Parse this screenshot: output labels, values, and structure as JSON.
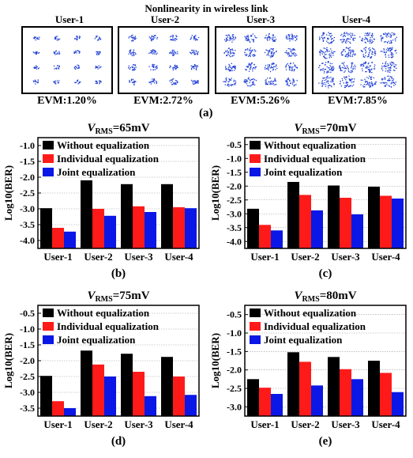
{
  "figure_a": {
    "title": "Nonlinearity in wireless link",
    "label": "(a)",
    "users": [
      {
        "name": "User-1",
        "evm": "EVM:1.20%",
        "spread": 0.012
      },
      {
        "name": "User-2",
        "evm": "EVM:2.72%",
        "spread": 0.027
      },
      {
        "name": "User-3",
        "evm": "EVM:5.26%",
        "spread": 0.053
      },
      {
        "name": "User-4",
        "evm": "EVM:7.85%",
        "spread": 0.079
      }
    ]
  },
  "colors": {
    "without": "#000000",
    "individual": "#ff1a1a",
    "joint": "#0a17e6",
    "dots": "#1f3fd6"
  },
  "legend": [
    "Without equalization",
    "Individual equalization",
    "Joint equalization"
  ],
  "chart_data": [
    {
      "type": "bar",
      "panel_label": "(b)",
      "title_prefix": "V",
      "title_sub": "RMS",
      "title_value": "=65mV",
      "ylabel": "Log10(BER)",
      "categories": [
        "User-1",
        "User-2",
        "User-3",
        "User-4"
      ],
      "ylim": [
        -4.25,
        -0.75
      ],
      "yticks": [
        "-1.0",
        "-1.5",
        "-2.0",
        "-2.5",
        "-3.0",
        "-3.5",
        "-4.0"
      ],
      "series": [
        {
          "name": "Without equalization",
          "values": [
            -2.98,
            -2.1,
            -2.22,
            -2.22
          ]
        },
        {
          "name": "Individual equalization",
          "values": [
            -3.6,
            -3.0,
            -2.92,
            -2.95
          ]
        },
        {
          "name": "Joint equalization",
          "values": [
            -3.72,
            -3.22,
            -3.1,
            -2.98
          ]
        }
      ]
    },
    {
      "type": "bar",
      "panel_label": "(c)",
      "title_prefix": "V",
      "title_sub": "RMS",
      "title_value": "=70mV",
      "ylabel": "Log10(BER)",
      "categories": [
        "User-1",
        "User-2",
        "User-3",
        "User-4"
      ],
      "ylim": [
        -4.25,
        -0.25
      ],
      "yticks": [
        "-0.5",
        "-1.0",
        "-1.5",
        "-2.0",
        "-2.5",
        "-3.0",
        "-3.5",
        "-4.0"
      ],
      "series": [
        {
          "name": "Without equalization",
          "values": [
            -2.82,
            -1.85,
            -1.98,
            -2.02
          ]
        },
        {
          "name": "Individual equalization",
          "values": [
            -3.4,
            -2.32,
            -2.42,
            -2.35
          ]
        },
        {
          "name": "Joint equalization",
          "values": [
            -3.6,
            -2.88,
            -3.02,
            -2.45
          ]
        }
      ]
    },
    {
      "type": "bar",
      "panel_label": "(d)",
      "title_prefix": "V",
      "title_sub": "RMS",
      "title_value": "=75mV",
      "ylabel": "Log10(BER)",
      "categories": [
        "User-1",
        "User-2",
        "User-3",
        "User-4"
      ],
      "ylim": [
        -3.75,
        -0.25
      ],
      "yticks": [
        "-0.5",
        "-1.0",
        "-1.5",
        "-2.0",
        "-2.5",
        "-3.0",
        "-3.5"
      ],
      "series": [
        {
          "name": "Without equalization",
          "values": [
            -2.48,
            -1.68,
            -1.78,
            -1.88
          ]
        },
        {
          "name": "Individual equalization",
          "values": [
            -3.28,
            -2.12,
            -2.35,
            -2.5
          ]
        },
        {
          "name": "Joint equalization",
          "values": [
            -3.5,
            -2.5,
            -3.12,
            -3.08
          ]
        }
      ]
    },
    {
      "type": "bar",
      "panel_label": "(e)",
      "title_prefix": "V",
      "title_sub": "RMS",
      "title_value": "=80mV",
      "ylabel": "Log10(BER)",
      "categories": [
        "User-1",
        "User-2",
        "User-3",
        "User-4"
      ],
      "ylim": [
        -3.25,
        -0.25
      ],
      "yticks": [
        "-0.5",
        "-1.0",
        "-1.5",
        "-2.0",
        "-2.5",
        "-3.0"
      ],
      "series": [
        {
          "name": "Without equalization",
          "values": [
            -2.25,
            -1.52,
            -1.65,
            -1.75
          ]
        },
        {
          "name": "Individual equalization",
          "values": [
            -2.48,
            -1.78,
            -1.98,
            -2.08
          ]
        },
        {
          "name": "Joint equalization",
          "values": [
            -2.65,
            -2.42,
            -2.25,
            -2.6
          ]
        }
      ]
    }
  ]
}
